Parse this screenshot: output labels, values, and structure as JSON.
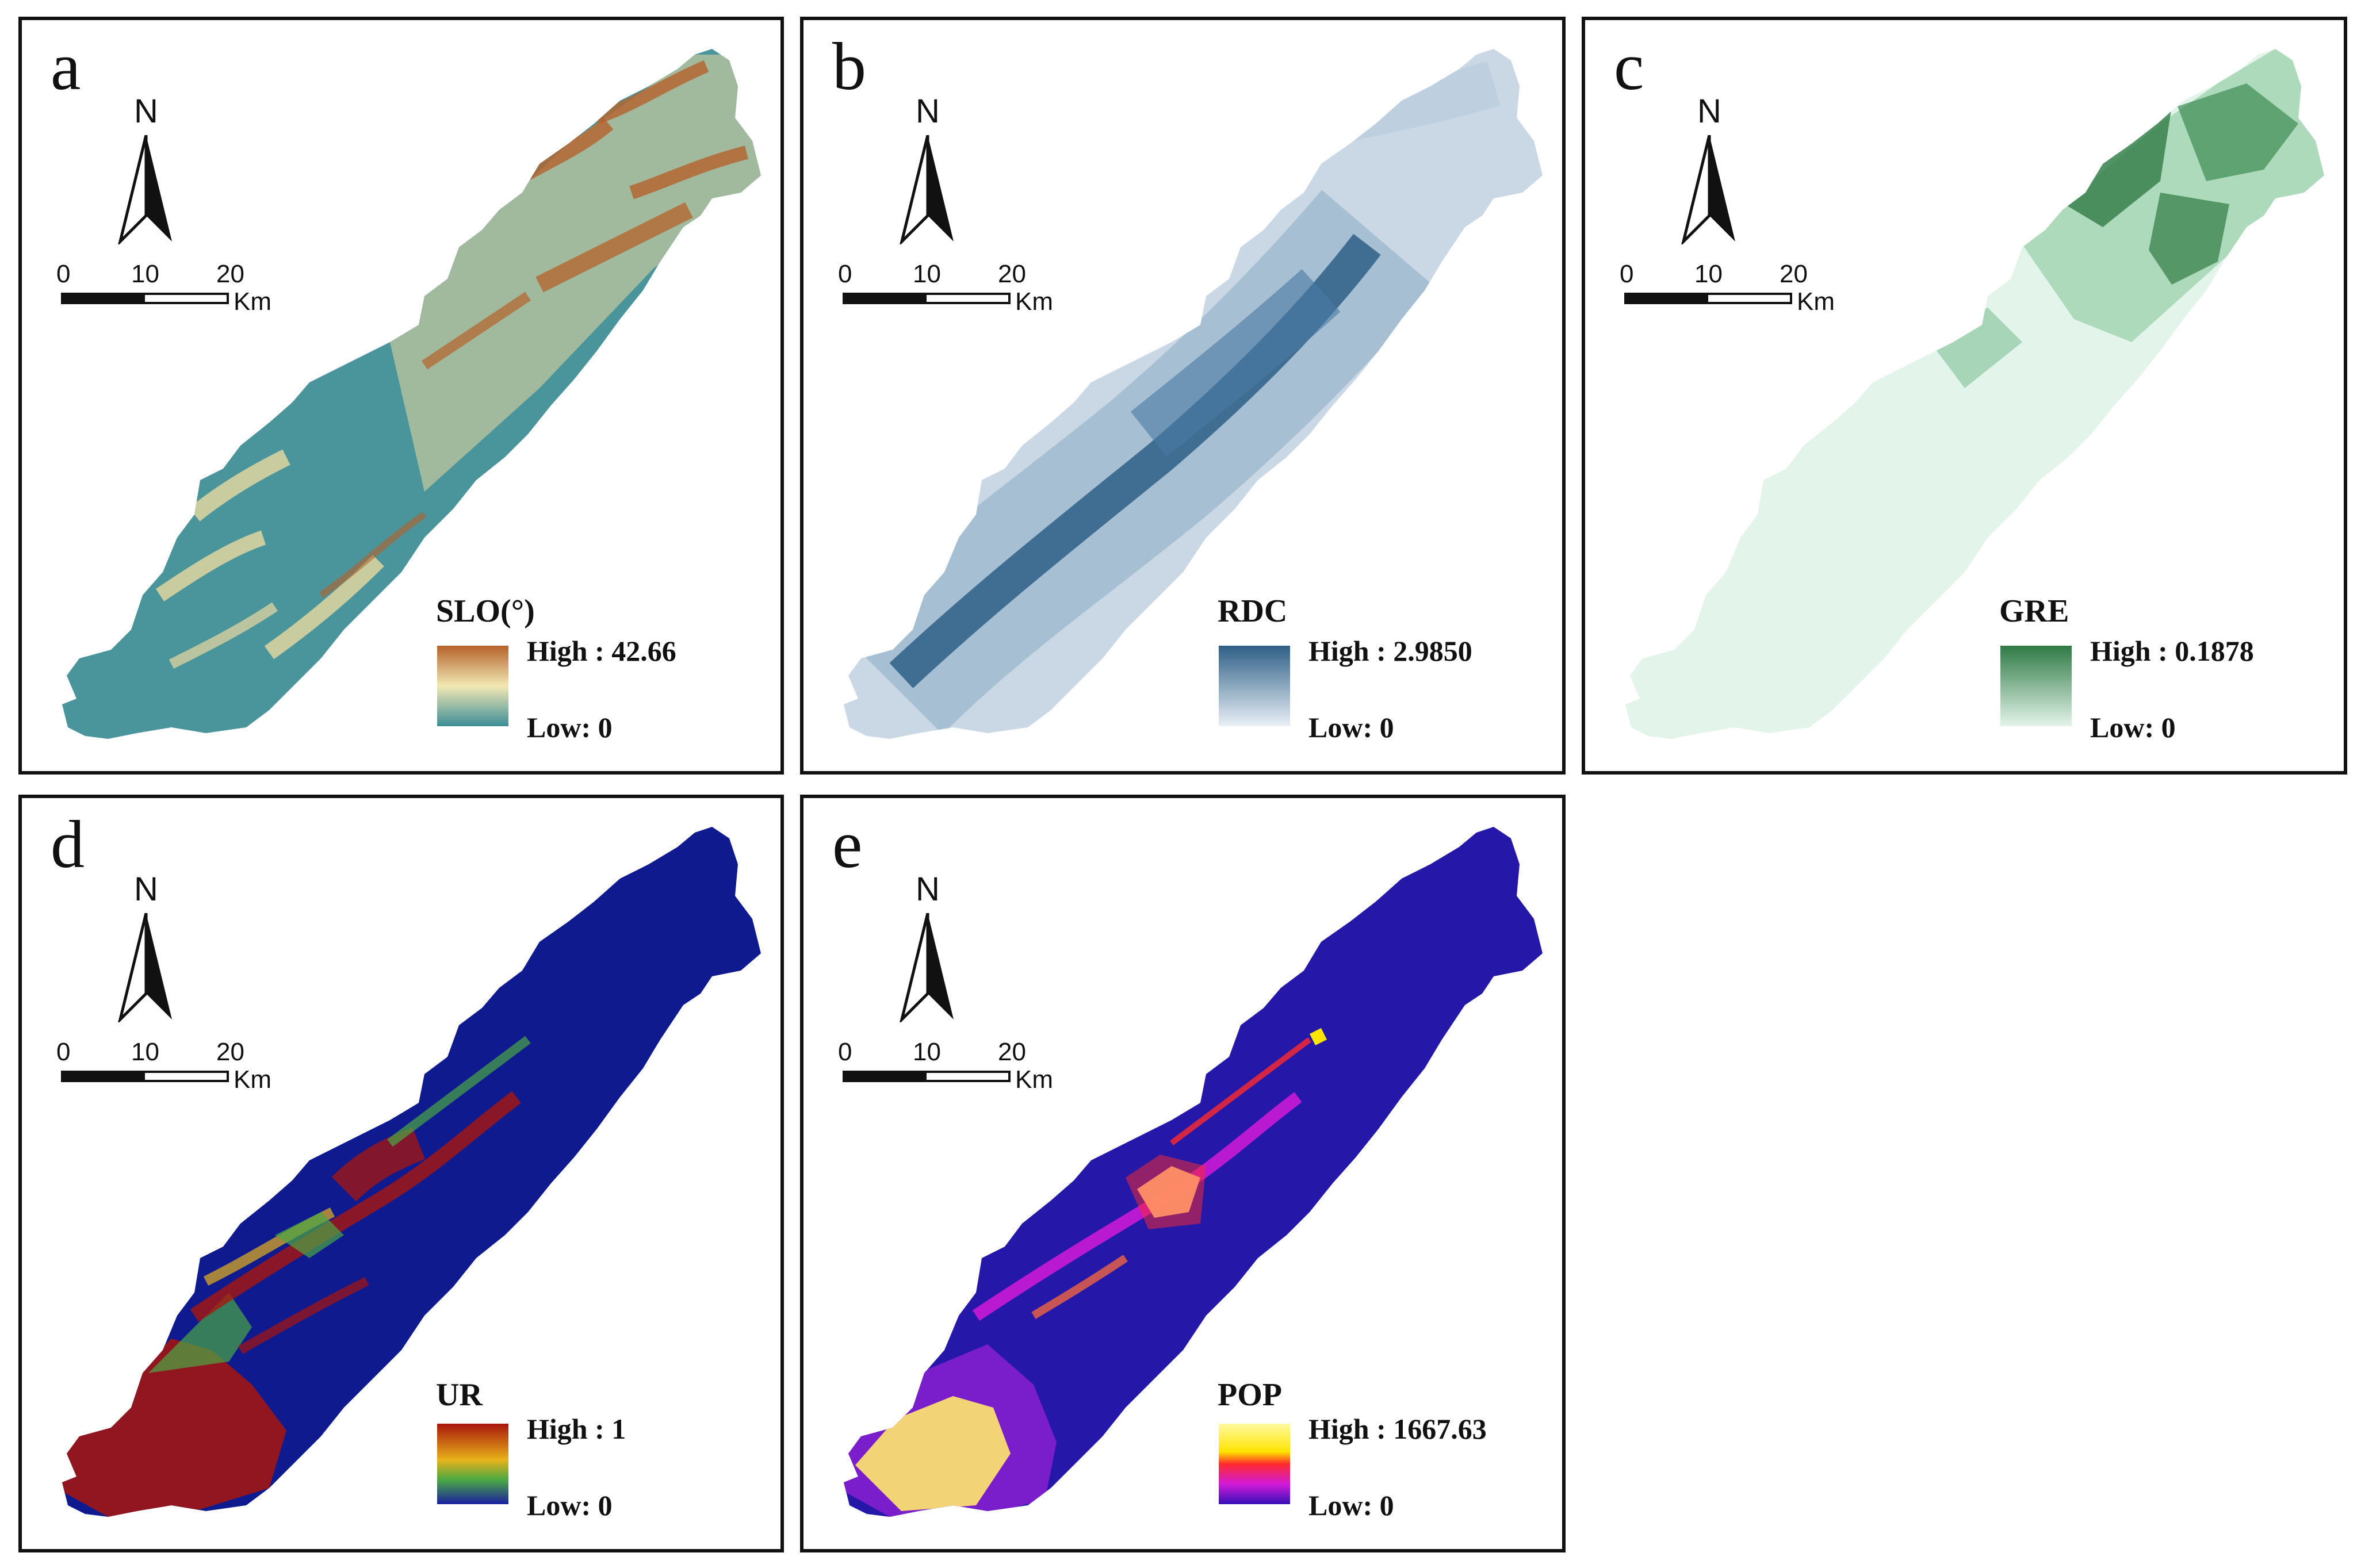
{
  "figure": {
    "scale_bar": {
      "ticks": [
        "0",
        "10",
        "20"
      ],
      "unit": "Km"
    },
    "north_label": "N",
    "panels": [
      {
        "id": "a",
        "letter": "a",
        "variable": "SLO(°)",
        "high_label": "High : 42.66",
        "low_label": "Low: 0",
        "high_value": 42.66,
        "low_value": 0,
        "colors": {
          "high": "#b5622a",
          "mid": "#f2e8b3",
          "low": "#3d8e98",
          "fill": "#4a959c"
        }
      },
      {
        "id": "b",
        "letter": "b",
        "variable": "RDC",
        "high_label": "High : 2.9850",
        "low_label": "Low: 0",
        "high_value": 2.985,
        "low_value": 0,
        "colors": {
          "high": "#2e5f87",
          "low": "#e8eff5",
          "fill": "#9fb9cd"
        }
      },
      {
        "id": "c",
        "letter": "c",
        "variable": "GRE",
        "high_label": "High : 0.1878",
        "low_label": "Low: 0",
        "high_value": 0.1878,
        "low_value": 0,
        "colors": {
          "high": "#2f7a45",
          "low": "#e3f4ea",
          "fill": "#d9f0e2"
        }
      },
      {
        "id": "d",
        "letter": "d",
        "variable": "UR",
        "high_label": "High : 1",
        "low_label": "Low: 0",
        "high_value": 1,
        "low_value": 0,
        "colors": {
          "high": "#a8160c",
          "mid": "#4aa844",
          "low": "#1a1fa0",
          "fill": "#0f1a8f"
        }
      },
      {
        "id": "e",
        "letter": "e",
        "variable": "POP",
        "high_label": "High : 1667.63",
        "low_label": "Low: 0",
        "high_value": 1667.63,
        "low_value": 0,
        "colors": {
          "high": "#fffaa0",
          "mid": "#ff2a2a",
          "low": "#3410b8",
          "fill": "#2518a8"
        }
      }
    ]
  }
}
